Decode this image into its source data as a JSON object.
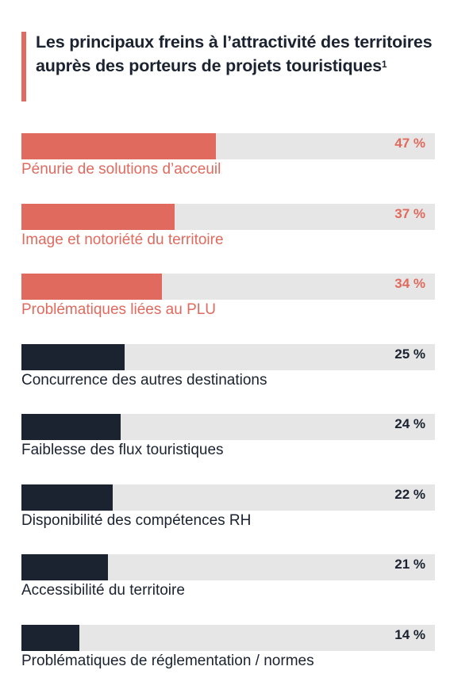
{
  "title": "Les principaux freins à l’attractivité des territoires auprès des porteurs de projets touristiques",
  "title_footnote": "1",
  "colors": {
    "highlight": "#e06a5e",
    "dark": "#1b2230",
    "track": "#e6e6e6"
  },
  "chart_data": {
    "type": "bar",
    "orientation": "horizontal",
    "title": "Les principaux freins à l’attractivité des territoires auprès des porteurs de projets touristiques",
    "unit": "%",
    "xlim": [
      0,
      100
    ],
    "categories": [
      "Pénurie de solutions d’acceuil",
      "Image et notoriété du territoire",
      "Problématiques liées au PLU",
      "Concurrence des autres destinations",
      "Faiblesse des flux touristiques",
      "Disponibilité des compétences RH",
      "Accessibilité du territoire",
      "Problématiques de réglementation / normes"
    ],
    "values": [
      47,
      37,
      34,
      25,
      24,
      22,
      21,
      14
    ],
    "value_labels": [
      "47 %",
      "37 %",
      "34 %",
      "25 %",
      "24 %",
      "22 %",
      "21 %",
      "14 %"
    ],
    "highlighted": [
      true,
      true,
      true,
      false,
      false,
      false,
      false,
      false
    ]
  }
}
